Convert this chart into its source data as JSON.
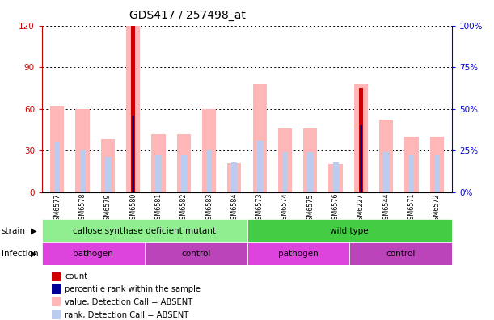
{
  "title": "GDS417 / 257498_at",
  "samples": [
    "GSM6577",
    "GSM6578",
    "GSM6579",
    "GSM6580",
    "GSM6581",
    "GSM6582",
    "GSM6583",
    "GSM6584",
    "GSM6573",
    "GSM6574",
    "GSM6575",
    "GSM6576",
    "GSM6227",
    "GSM6544",
    "GSM6571",
    "GSM6572"
  ],
  "value_bars": [
    62,
    60,
    38,
    120,
    42,
    42,
    60,
    21,
    78,
    46,
    46,
    20,
    78,
    52,
    40,
    40
  ],
  "rank_bars_pct": [
    30,
    25,
    21,
    45,
    22,
    22,
    25,
    18,
    31,
    24,
    24,
    18,
    34,
    24,
    22,
    22
  ],
  "count_bars": [
    0,
    0,
    0,
    120,
    0,
    0,
    0,
    0,
    0,
    0,
    0,
    0,
    75,
    0,
    0,
    0
  ],
  "percentile_bars_pct": [
    0,
    0,
    0,
    46,
    0,
    0,
    0,
    0,
    0,
    0,
    0,
    0,
    40,
    0,
    0,
    0
  ],
  "ylim_left": [
    0,
    120
  ],
  "ylim_right": [
    0,
    100
  ],
  "yticks_left": [
    0,
    30,
    60,
    90,
    120
  ],
  "yticks_right": [
    0,
    25,
    50,
    75,
    100
  ],
  "ytick_labels_left": [
    "0",
    "30",
    "60",
    "90",
    "120"
  ],
  "ytick_labels_right": [
    "0%",
    "25%",
    "50%",
    "75%",
    "100%"
  ],
  "strain_groups": [
    {
      "label": "callose synthase deficient mutant",
      "start": 0,
      "end": 8,
      "color": "#90EE90"
    },
    {
      "label": "wild type",
      "start": 8,
      "end": 16,
      "color": "#44CC44"
    }
  ],
  "infection_colors": [
    "#DD44DD",
    "#BB44BB",
    "#DD44DD",
    "#BB44BB"
  ],
  "infection_labels": [
    "pathogen",
    "control",
    "pathogen",
    "control"
  ],
  "infection_starts": [
    0,
    4,
    8,
    12
  ],
  "infection_ends": [
    4,
    8,
    12,
    16
  ],
  "value_bar_color": "#FFB6B6",
  "rank_bar_color": "#BBCCEE",
  "count_bar_color": "#CC0000",
  "percentile_bar_color": "#000099",
  "left_axis_color": "#CC0000",
  "right_axis_color": "#0000CC",
  "background_color": "#FFFFFF",
  "grid_color": "#000000",
  "strain_label": "strain",
  "infection_label": "infection",
  "legend_items": [
    {
      "color": "#CC0000",
      "label": "count"
    },
    {
      "color": "#000099",
      "label": "percentile rank within the sample"
    },
    {
      "color": "#FFB6B6",
      "label": "value, Detection Call = ABSENT"
    },
    {
      "color": "#BBCCEE",
      "label": "rank, Detection Call = ABSENT"
    }
  ]
}
